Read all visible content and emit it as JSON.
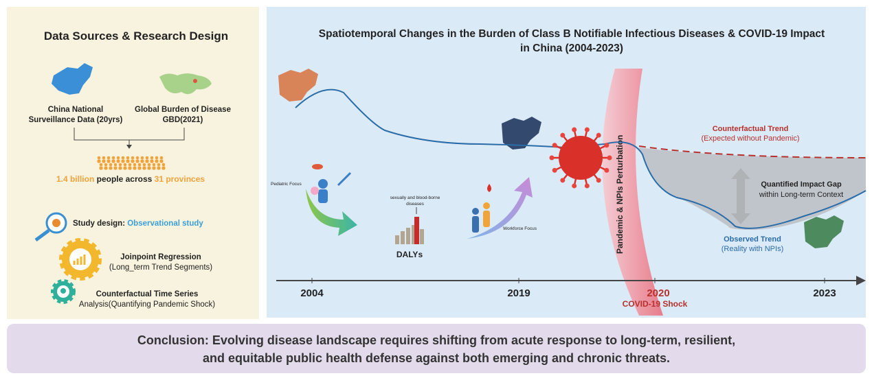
{
  "left_panel": {
    "title": "Data Sources & Research Design",
    "source_1": [
      "China National",
      "Surveillance Data (20yrs)"
    ],
    "source_2": [
      "Global Burden of Disease",
      "GBD(2021)"
    ],
    "population": {
      "count": "1.4 billion",
      "middle": " people across ",
      "provinces": "31 provinces"
    },
    "study_design": {
      "label": "Study design: ",
      "value": "Observational study"
    },
    "method_1": [
      "Joinpoint Regression",
      "(Long_term Trend Segments)"
    ],
    "method_2": [
      "Counterfactual Time Series",
      "Analysis(Quantifying Pandemic Shock)"
    ]
  },
  "right_panel": {
    "title": [
      "Spatiotemporal Changes in the Burden of Class B Notifiable Infectious Diseases & COVID-19 Impact",
      "in China (2004-2023)"
    ],
    "pediatric": "Pediatric Focus",
    "std_label": [
      "sexually and blood-borne",
      "diseases"
    ],
    "dalys": "DALYs",
    "workforce": "Workforce Focus",
    "perturbation": "Pandemic & NPIs Perturbation",
    "counterfactual": [
      "Counterfactual Trend",
      "(Expected without Pandemic)"
    ],
    "gap": [
      "Quantified Impact Gap",
      "within Long-term Context"
    ],
    "observed": [
      "Observed Trend",
      "(Reality with NPIs)"
    ],
    "years": [
      "2004",
      "2019",
      "2020",
      "2023"
    ],
    "shock": "COVID-19 Shock"
  },
  "conclusion": [
    "Conclusion: Evolving disease landscape requires shifting from acute response to long-term, resilient,",
    "and equitable public health defense against both emerging and chronic threats."
  ]
}
